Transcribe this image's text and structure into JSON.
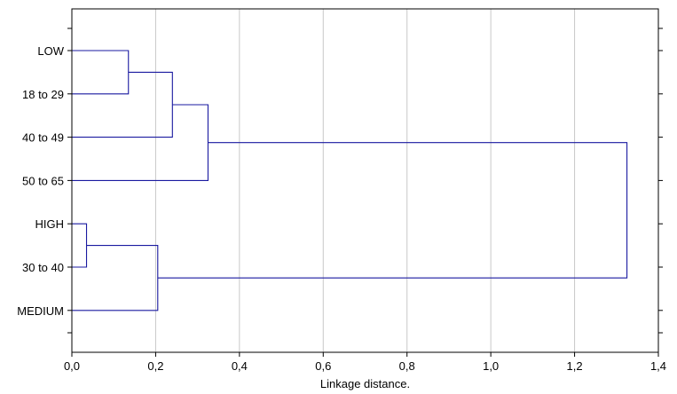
{
  "chart_data": {
    "type": "dendrogram",
    "title": "",
    "xlabel": "Linkage distance.",
    "ylabel": "",
    "xlim": [
      0.0,
      1.4
    ],
    "x_ticks": [
      "0,0",
      "0,2",
      "0,4",
      "0,6",
      "0,8",
      "1,0",
      "1,2",
      "1,4"
    ],
    "grid": "vertical",
    "leaves": [
      "LOW",
      "18 to 29",
      "40 to 49",
      "50 to 65",
      "HIGH",
      "30 to 40",
      "MEDIUM"
    ],
    "merges": [
      {
        "a": "leaf:0",
        "b": "leaf:1",
        "distance": 0.135
      },
      {
        "a": "node:0",
        "b": "leaf:2",
        "distance": 0.24
      },
      {
        "a": "node:1",
        "b": "leaf:3",
        "distance": 0.325
      },
      {
        "a": "leaf:4",
        "b": "leaf:5",
        "distance": 0.035
      },
      {
        "a": "node:3",
        "b": "leaf:6",
        "distance": 0.205
      },
      {
        "a": "node:2",
        "b": "node:4",
        "distance": 1.325
      }
    ],
    "colors": {
      "link": "#1a1aa0",
      "grid": "#c8c8c8",
      "frame": "#000000"
    }
  }
}
